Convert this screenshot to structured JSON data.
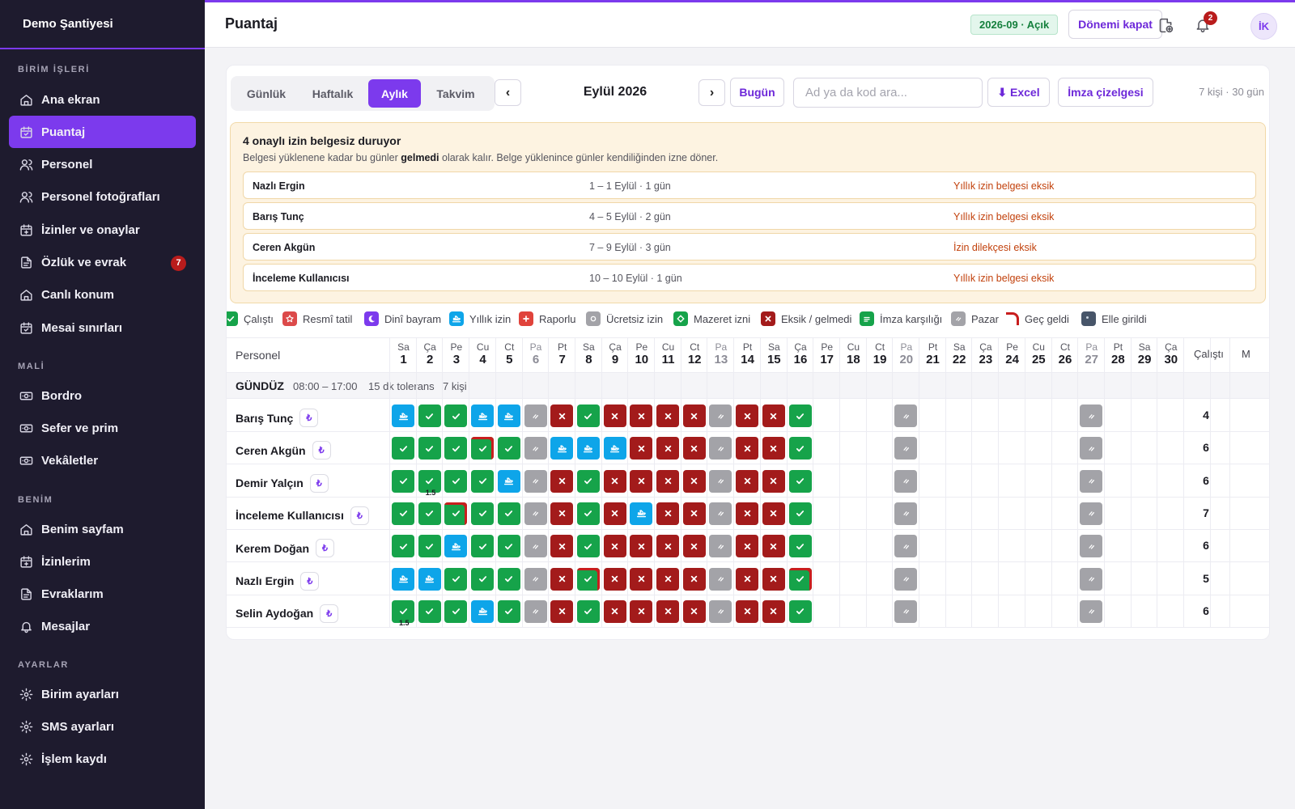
{
  "app": {
    "workspace": "Demo Şantiyesi",
    "page_title": "Puantaj"
  },
  "sidebar": {
    "sections": [
      {
        "title": "BİRİM İŞLERİ",
        "items": [
          {
            "label": "Ana ekran",
            "icon": "home-icon"
          },
          {
            "label": "Puantaj",
            "icon": "calendar-check-icon",
            "active": true
          },
          {
            "label": "Personel",
            "icon": "users-icon"
          },
          {
            "label": "Personel fotoğrafları",
            "icon": "users-icon"
          },
          {
            "label": "İzinler ve onaylar",
            "icon": "calendar-plus-icon"
          },
          {
            "label": "Özlük ve evrak",
            "icon": "document-icon",
            "badge": "7"
          },
          {
            "label": "Canlı konum",
            "icon": "home-icon"
          },
          {
            "label": "Mesai sınırları",
            "icon": "calendar-check-icon"
          }
        ]
      },
      {
        "title": "MALİ",
        "items": [
          {
            "label": "Bordro",
            "icon": "money-icon"
          },
          {
            "label": "Sefer ve prim",
            "icon": "money-icon"
          },
          {
            "label": "Vekâletler",
            "icon": "money-icon"
          }
        ]
      },
      {
        "title": "BENİM",
        "items": [
          {
            "label": "Benim sayfam",
            "icon": "home-icon"
          },
          {
            "label": "İzinlerim",
            "icon": "calendar-plus-icon"
          },
          {
            "label": "Evraklarım",
            "icon": "document-icon"
          },
          {
            "label": "Mesajlar",
            "icon": "bell-icon"
          }
        ]
      },
      {
        "title": "AYARLAR",
        "items": [
          {
            "label": "Birim ayarları",
            "icon": "gear-icon"
          },
          {
            "label": "SMS ayarları",
            "icon": "gear-icon"
          },
          {
            "label": "İşlem kaydı",
            "icon": "gear-icon"
          }
        ]
      }
    ]
  },
  "topbar": {
    "period": "2026-09 · Açık",
    "close_period": "Dönemi kapat",
    "notifications_count": "2",
    "avatar_initials": "İK"
  },
  "toolbar": {
    "views": [
      "Günlük",
      "Haftalık",
      "Aylık",
      "Takvim"
    ],
    "active_view": "Aylık",
    "prev": "‹",
    "next": "›",
    "month": "Eylül 2026",
    "today": "Bugün",
    "search_placeholder": "Ad ya da kod ara...",
    "excel": "⬇ Excel",
    "signature_sheet": "İmza çizelgesi",
    "summary": "7 kişi · 30 gün"
  },
  "warning": {
    "title": "4 onaylı izin belgesiz duruyor",
    "sub_before": "Belgesi yüklenene kadar bu günler ",
    "sub_bold": "gelmedi",
    "sub_after": " olarak kalır. Belge yüklenince günler kendiliğinden izne döner.",
    "rows": [
      {
        "name": "Nazlı Ergin",
        "dates": "1 – 1 Eylül · 1 gün",
        "missing": "Yıllık izin belgesi eksik"
      },
      {
        "name": "Barış Tunç",
        "dates": "4 – 5 Eylül · 2 gün",
        "missing": "Yıllık izin belgesi eksik"
      },
      {
        "name": "Ceren Akgün",
        "dates": "7 – 9 Eylül · 3 gün",
        "missing": "İzin dilekçesi eksik"
      },
      {
        "name": "İnceleme Kullanıcısı",
        "dates": "10 – 10 Eylül · 1 gün",
        "missing": "Yıllık izin belgesi eksik"
      }
    ]
  },
  "legend": [
    {
      "key": "W",
      "label": "Çalıştı"
    },
    {
      "key": "RT",
      "label": "Resmî tatil"
    },
    {
      "key": "DB",
      "label": "Dinî bayram"
    },
    {
      "key": "L",
      "label": "Yıllık izin"
    },
    {
      "key": "RP",
      "label": "Raporlu"
    },
    {
      "key": "UI",
      "label": "Ücretsiz izin"
    },
    {
      "key": "MZ",
      "label": "Mazeret izni"
    },
    {
      "key": "X",
      "label": "Eksik / gelmedi"
    },
    {
      "key": "IK",
      "label": "İmza karşılığı"
    },
    {
      "key": "P",
      "label": "Pazar"
    },
    {
      "key": "GG",
      "label": "Geç geldi"
    },
    {
      "key": "EG",
      "label": "Elle girildi"
    }
  ],
  "colors": {
    "W": "#16a34a",
    "L": "#0ea5e9",
    "X": "#a31b1b",
    "P": "#a3a3a8",
    "RT": "#dc4a4a",
    "DB": "#7c3aed",
    "RP": "#e0433b",
    "UI": "#a3a3a8",
    "MZ": "#16a34a",
    "IK": "#16a34a",
    "EG": "#475569",
    "late": "#c81e1e",
    "accent": "#7c3aed"
  },
  "grid": {
    "person_header": "Personel",
    "total_header": "Çalıştı",
    "extra_header": "M",
    "days": [
      {
        "n": "Sa",
        "d": "1"
      },
      {
        "n": "Ça",
        "d": "2"
      },
      {
        "n": "Pe",
        "d": "3"
      },
      {
        "n": "Cu",
        "d": "4"
      },
      {
        "n": "Ct",
        "d": "5"
      },
      {
        "n": "Pa",
        "d": "6",
        "sun": true
      },
      {
        "n": "Pt",
        "d": "7"
      },
      {
        "n": "Sa",
        "d": "8"
      },
      {
        "n": "Ça",
        "d": "9"
      },
      {
        "n": "Pe",
        "d": "10"
      },
      {
        "n": "Cu",
        "d": "11"
      },
      {
        "n": "Ct",
        "d": "12"
      },
      {
        "n": "Pa",
        "d": "13",
        "sun": true
      },
      {
        "n": "Pt",
        "d": "14"
      },
      {
        "n": "Sa",
        "d": "15"
      },
      {
        "n": "Ça",
        "d": "16"
      },
      {
        "n": "Pe",
        "d": "17"
      },
      {
        "n": "Cu",
        "d": "18"
      },
      {
        "n": "Ct",
        "d": "19"
      },
      {
        "n": "Pa",
        "d": "20",
        "sun": true
      },
      {
        "n": "Pt",
        "d": "21"
      },
      {
        "n": "Sa",
        "d": "22"
      },
      {
        "n": "Ça",
        "d": "23"
      },
      {
        "n": "Pe",
        "d": "24"
      },
      {
        "n": "Cu",
        "d": "25"
      },
      {
        "n": "Ct",
        "d": "26"
      },
      {
        "n": "Pa",
        "d": "27",
        "sun": true
      },
      {
        "n": "Pt",
        "d": "28"
      },
      {
        "n": "Sa",
        "d": "29"
      },
      {
        "n": "Ça",
        "d": "30"
      }
    ],
    "group": {
      "name": "GÜNDÜZ",
      "hours": "08:00 – 17:00",
      "tolerance": "15 dk tolerans",
      "count": "7 kişi"
    },
    "rows": [
      {
        "name": "Barış Tunç",
        "total": "4",
        "cells": [
          "L",
          "W",
          "W",
          "L",
          "L",
          "P",
          "X",
          "W",
          "X",
          "X",
          "X",
          "X",
          "P",
          "X",
          "X",
          "W",
          "",
          "",
          "",
          "P",
          "",
          "",
          "",
          "",
          "",
          "",
          "P",
          "",
          "",
          ""
        ]
      },
      {
        "name": "Ceren Akgün",
        "total": "6",
        "cells": [
          "W",
          "W",
          "W",
          "W*",
          "W",
          "P",
          "L",
          "L",
          "L",
          "X",
          "X",
          "X",
          "P",
          "X",
          "X",
          "W",
          "",
          "",
          "",
          "P",
          "",
          "",
          "",
          "",
          "",
          "",
          "P",
          "",
          "",
          ""
        ]
      },
      {
        "name": "Demir Yalçın",
        "total": "6",
        "cells": [
          "W",
          "W:1.5",
          "W",
          "W",
          "L",
          "P",
          "X",
          "W",
          "X",
          "X",
          "X",
          "X",
          "P",
          "X",
          "X",
          "W",
          "",
          "",
          "",
          "P",
          "",
          "",
          "",
          "",
          "",
          "",
          "P",
          "",
          "",
          ""
        ]
      },
      {
        "name": "İnceleme Kullanıcısı",
        "total": "7",
        "cells": [
          "W",
          "W",
          "W*",
          "W",
          "W",
          "P",
          "X",
          "W",
          "X",
          "L",
          "X",
          "X",
          "P",
          "X",
          "X",
          "W",
          "",
          "",
          "",
          "P",
          "",
          "",
          "",
          "",
          "",
          "",
          "P",
          "",
          "",
          ""
        ]
      },
      {
        "name": "Kerem Doğan",
        "total": "6",
        "cells": [
          "W",
          "W",
          "L",
          "W",
          "W",
          "P",
          "X",
          "W",
          "X",
          "X",
          "X",
          "X",
          "P",
          "X",
          "X",
          "W",
          "",
          "",
          "",
          "P",
          "",
          "",
          "",
          "",
          "",
          "",
          "P",
          "",
          "",
          ""
        ]
      },
      {
        "name": "Nazlı Ergin",
        "total": "5",
        "cells": [
          "L",
          "L",
          "W",
          "W",
          "W",
          "P",
          "X",
          "W*",
          "X",
          "X",
          "X",
          "X",
          "P",
          "X",
          "X",
          "W*",
          "",
          "",
          "",
          "P",
          "",
          "",
          "",
          "",
          "",
          "",
          "P",
          "",
          "",
          ""
        ]
      },
      {
        "name": "Selin Aydoğan",
        "total": "6",
        "cells": [
          "W:1.5",
          "W",
          "W",
          "L",
          "W",
          "P",
          "X",
          "W",
          "X",
          "X",
          "X",
          "X",
          "P",
          "X",
          "X",
          "W",
          "",
          "",
          "",
          "P",
          "",
          "",
          "",
          "",
          "",
          "",
          "P",
          "",
          "",
          ""
        ]
      }
    ]
  }
}
